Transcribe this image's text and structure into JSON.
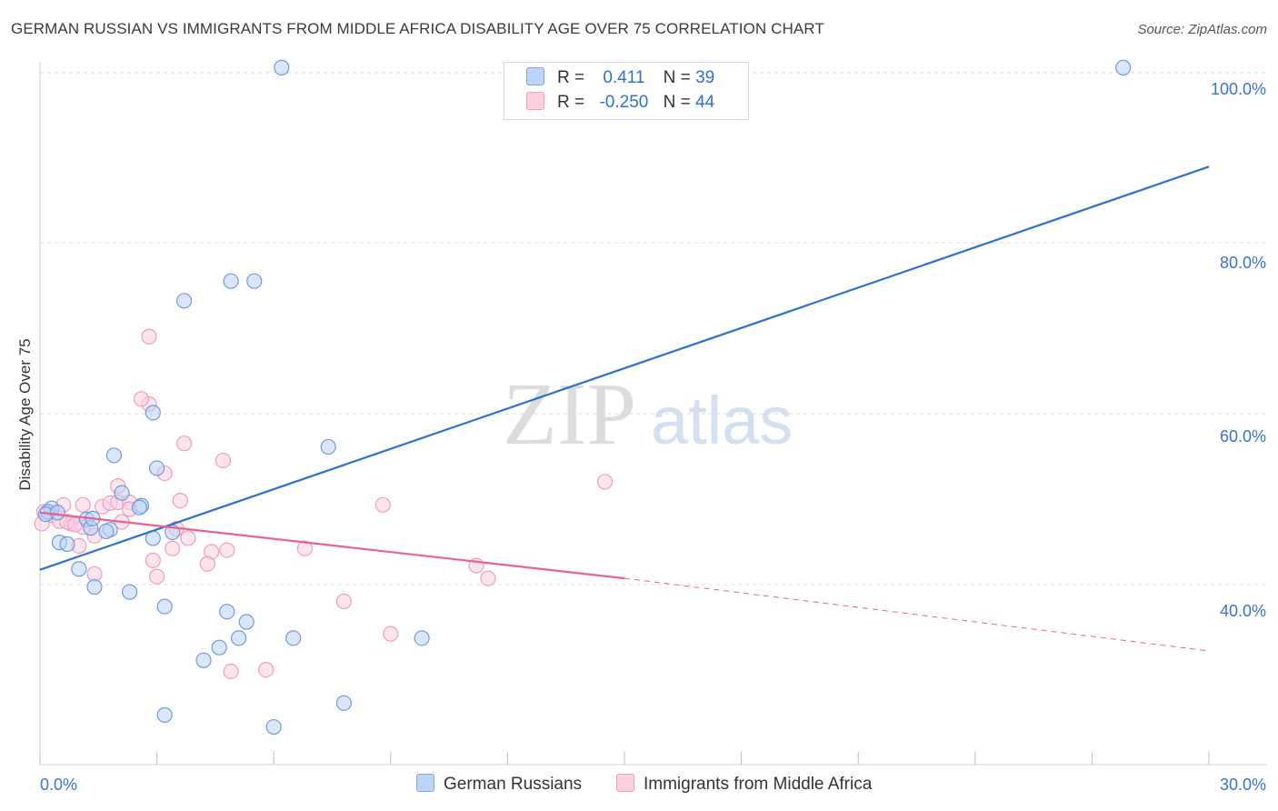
{
  "title": "GERMAN RUSSIAN VS IMMIGRANTS FROM MIDDLE AFRICA DISABILITY AGE OVER 75 CORRELATION CHART",
  "source": "Source: ZipAtlas.com",
  "watermark": {
    "zip": "ZIP",
    "atlas": "atlas"
  },
  "legend": {
    "rows": [
      {
        "r_label": "R =",
        "r_value": "0.411",
        "n_label": "N =",
        "n_value": "39"
      },
      {
        "r_label": "R =",
        "r_value": "-0.250",
        "n_label": "N =",
        "n_value": "44"
      }
    ]
  },
  "bottom_legend": {
    "series1": "German Russians",
    "series2": "Immigrants from Middle Africa"
  },
  "colors": {
    "blue": "#2f6fce",
    "blue_fill": "#bcd4f5",
    "pink": "#e8628f",
    "pink_fill": "#fbcfe0",
    "axis_text": "#3a72cf"
  },
  "chart_data": {
    "type": "scatter",
    "title": "GERMAN RUSSIAN VS IMMIGRANTS FROM MIDDLE AFRICA DISABILITY AGE OVER 75 CORRELATION CHART",
    "xlabel": "",
    "ylabel": "Disability Age Over 75",
    "xlim": [
      0,
      30
    ],
    "ylim": [
      20,
      102
    ],
    "x_tick_labels": [
      {
        "value": 0,
        "label": "0.0%"
      },
      {
        "value": 30,
        "label": "30.0%"
      }
    ],
    "y_tick_labels": [
      {
        "value": 100,
        "label": "100.0%"
      },
      {
        "value": 80,
        "label": "80.0%"
      },
      {
        "value": 60,
        "label": "60.0%"
      },
      {
        "value": 40,
        "label": "40.0%"
      }
    ],
    "x_minor_ticks": [
      0,
      3,
      6,
      9,
      12,
      15,
      18,
      21,
      24,
      27,
      30
    ],
    "grid": true,
    "series": [
      {
        "name": "German Russians",
        "color": "#2f6fce",
        "points": [
          [
            6.2,
            101.6
          ],
          [
            27.8,
            101.6
          ],
          [
            4.9,
            76.6
          ],
          [
            5.5,
            76.6
          ],
          [
            3.7,
            74.3
          ],
          [
            2.9,
            61.2
          ],
          [
            7.4,
            57.2
          ],
          [
            1.9,
            56.2
          ],
          [
            3.0,
            54.7
          ],
          [
            2.1,
            51.8
          ],
          [
            2.6,
            50.3
          ],
          [
            0.3,
            50.0
          ],
          [
            0.2,
            49.6
          ],
          [
            1.2,
            48.7
          ],
          [
            1.3,
            47.7
          ],
          [
            1.8,
            47.5
          ],
          [
            1.7,
            47.3
          ],
          [
            3.4,
            47.2
          ],
          [
            0.5,
            46.0
          ],
          [
            2.9,
            46.5
          ],
          [
            0.7,
            45.8
          ],
          [
            1.0,
            42.9
          ],
          [
            1.4,
            40.8
          ],
          [
            2.3,
            40.2
          ],
          [
            3.2,
            38.5
          ],
          [
            4.8,
            37.9
          ],
          [
            5.3,
            36.7
          ],
          [
            5.1,
            34.8
          ],
          [
            6.5,
            34.8
          ],
          [
            9.8,
            34.8
          ],
          [
            4.6,
            33.7
          ],
          [
            4.2,
            32.2
          ],
          [
            3.2,
            25.8
          ],
          [
            6.0,
            24.4
          ],
          [
            7.8,
            27.2
          ],
          [
            0.15,
            49.3
          ],
          [
            0.45,
            49.5
          ],
          [
            1.35,
            48.8
          ],
          [
            2.55,
            50.1
          ]
        ]
      },
      {
        "name": "Immigrants from Middle Africa",
        "color": "#e8628f",
        "points": [
          [
            0.1,
            49.6
          ],
          [
            0.3,
            49.2
          ],
          [
            0.5,
            48.5
          ],
          [
            0.8,
            48.2
          ],
          [
            1.1,
            47.8
          ],
          [
            0.6,
            50.4
          ],
          [
            1.1,
            50.4
          ],
          [
            1.6,
            50.2
          ],
          [
            1.8,
            50.6
          ],
          [
            2.0,
            50.7
          ],
          [
            2.3,
            50.7
          ],
          [
            2.1,
            48.4
          ],
          [
            1.0,
            45.6
          ],
          [
            1.4,
            46.8
          ],
          [
            2.0,
            52.6
          ],
          [
            2.8,
            62.2
          ],
          [
            2.6,
            62.8
          ],
          [
            2.8,
            70.1
          ],
          [
            3.2,
            54.1
          ],
          [
            3.6,
            50.9
          ],
          [
            3.7,
            57.6
          ],
          [
            4.7,
            55.6
          ],
          [
            3.5,
            47.6
          ],
          [
            3.8,
            46.5
          ],
          [
            4.4,
            44.9
          ],
          [
            3.4,
            45.3
          ],
          [
            2.9,
            43.9
          ],
          [
            4.3,
            43.5
          ],
          [
            3.0,
            42.0
          ],
          [
            4.8,
            45.1
          ],
          [
            1.4,
            42.3
          ],
          [
            6.8,
            45.3
          ],
          [
            8.8,
            50.4
          ],
          [
            11.2,
            43.3
          ],
          [
            11.5,
            41.8
          ],
          [
            14.5,
            53.1
          ],
          [
            7.8,
            39.1
          ],
          [
            9.0,
            35.3
          ],
          [
            4.9,
            30.9
          ],
          [
            5.8,
            31.1
          ],
          [
            0.7,
            48.4
          ],
          [
            0.9,
            48.1
          ],
          [
            2.3,
            49.9
          ],
          [
            0.05,
            48.2
          ]
        ]
      }
    ],
    "trend_lines": [
      {
        "series": "German Russians",
        "x": [
          0,
          30
        ],
        "y": [
          42.8,
          90.0
        ],
        "style": "solid"
      },
      {
        "series": "Immigrants from Middle Africa",
        "x": [
          0,
          15
        ],
        "y": [
          49.5,
          41.8
        ],
        "style": "solid"
      },
      {
        "series": "Immigrants from Middle Africa",
        "x": [
          15,
          30
        ],
        "y": [
          41.8,
          33.3
        ],
        "style": "dashed"
      }
    ]
  }
}
